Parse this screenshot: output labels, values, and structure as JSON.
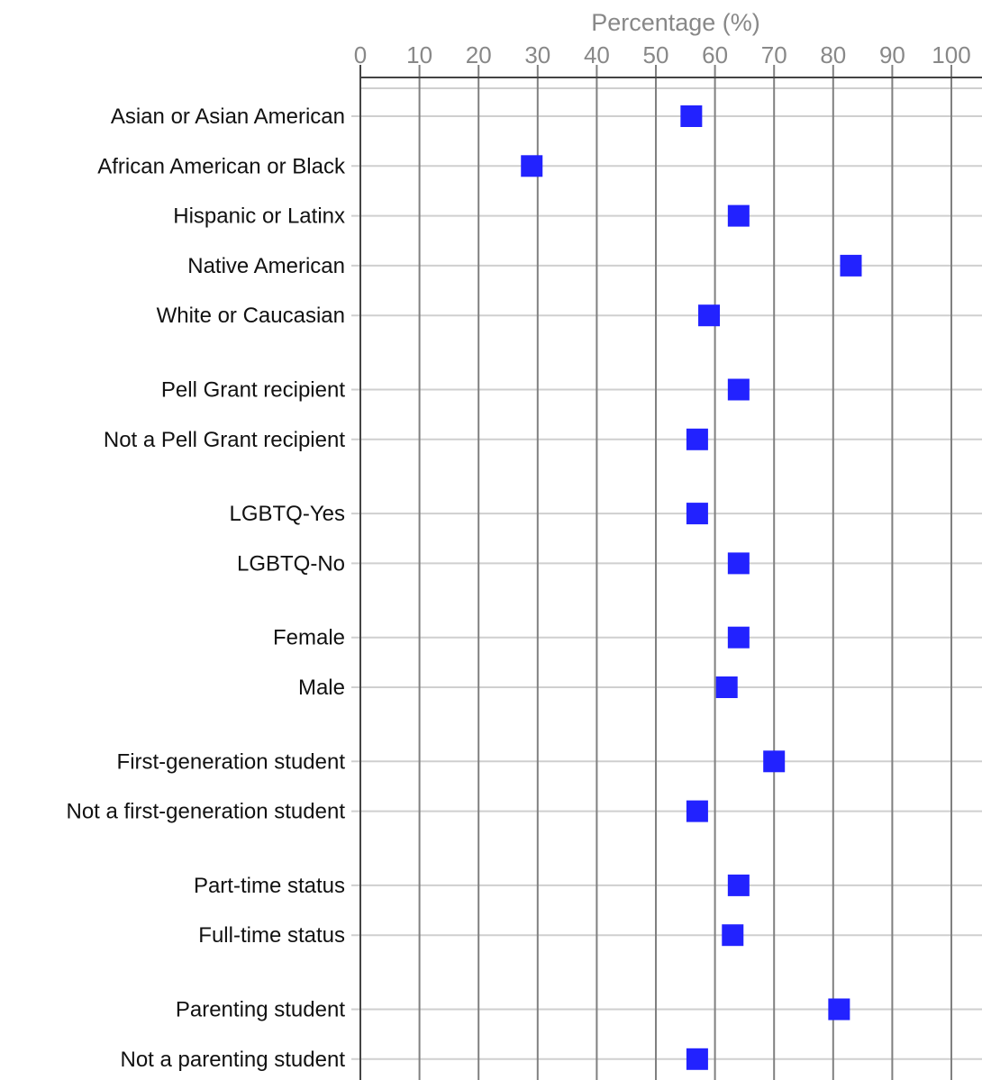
{
  "chart_data": {
    "type": "scatter",
    "title": "",
    "xlabel": "Percentage (%)",
    "ylabel": "",
    "xlim": [
      0,
      100
    ],
    "x_ticks": [
      0,
      10,
      20,
      30,
      40,
      50,
      60,
      70,
      80,
      90,
      100
    ],
    "grid": true,
    "legend": "none",
    "marker_color": "#2222ff",
    "categories": [
      "Asian or Asian American",
      "African American or Black",
      "Hispanic or Latinx",
      "Native American",
      "White or Caucasian",
      "Pell Grant recipient",
      "Not a Pell Grant recipient",
      "LGBTQ-Yes",
      "LGBTQ-No",
      "Female",
      "Male",
      "First-generation student",
      "Not a first-generation student",
      "Part-time status",
      "Full-time status",
      "Parenting student",
      "Not a parenting student"
    ],
    "groups": [
      [
        "Asian or Asian American",
        "African American or Black",
        "Hispanic or Latinx",
        "Native American",
        "White or Caucasian"
      ],
      [
        "Pell Grant recipient",
        "Not a Pell Grant recipient"
      ],
      [
        "LGBTQ-Yes",
        "LGBTQ-No"
      ],
      [
        "Female",
        "Male"
      ],
      [
        "First-generation student",
        "Not a first-generation student"
      ],
      [
        "Part-time status",
        "Full-time status"
      ],
      [
        "Parenting student",
        "Not a parenting student"
      ]
    ],
    "values": [
      56,
      29,
      64,
      83,
      59,
      64,
      57,
      57,
      64,
      64,
      62,
      70,
      57,
      64,
      63,
      81,
      57
    ]
  }
}
